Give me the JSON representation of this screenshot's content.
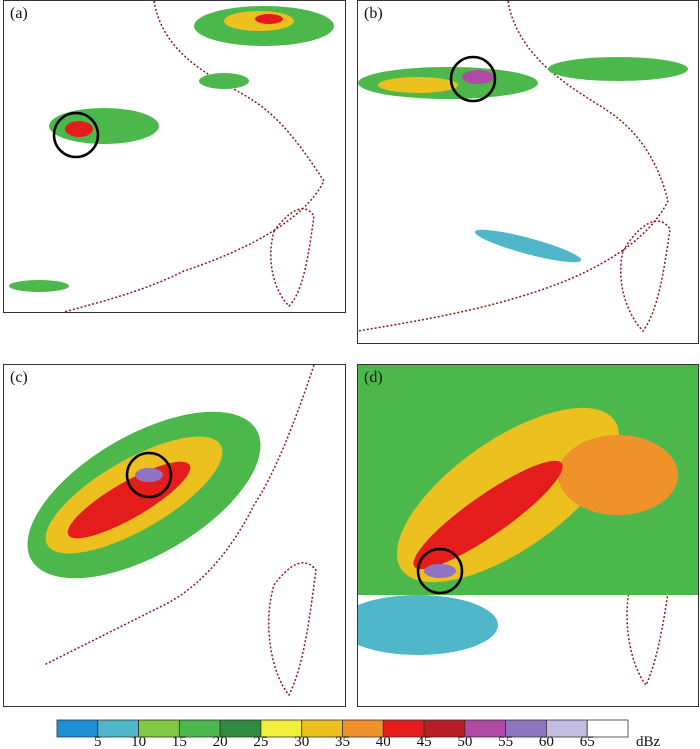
{
  "panels": [
    {
      "label": "(a)"
    },
    {
      "label": "(b)"
    },
    {
      "label": "(c)"
    },
    {
      "label": "(d)"
    }
  ],
  "colorbar": {
    "ticks": [
      5,
      10,
      15,
      20,
      25,
      30,
      35,
      40,
      45,
      50,
      55,
      60,
      65
    ],
    "unit": "dBz",
    "colors": [
      "#1f8fd4",
      "#4fb7c9",
      "#80c846",
      "#4cb84c",
      "#2e8c3c",
      "#f2ef3c",
      "#ecc11f",
      "#f0922a",
      "#e51c1c",
      "#b81d22",
      "#b04aa5",
      "#8f74c1",
      "#c4bde3",
      "#ffffff"
    ]
  }
}
